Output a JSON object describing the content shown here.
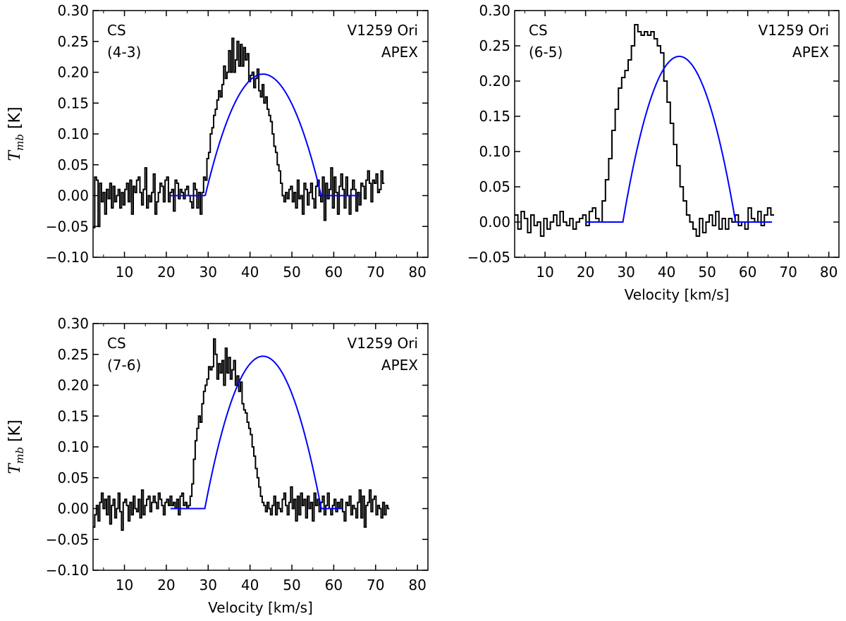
{
  "figure": {
    "description_units": {
      "x": "Velocity [km/s]",
      "y": "T_mb [K]"
    }
  },
  "chart_data": [
    {
      "type": "line",
      "panel": "top-left",
      "label_species": "CS",
      "label_transition": "(4-3)",
      "label_source": "V1259 Ori",
      "label_telescope": "APEX",
      "xlabel": "",
      "ylabel_main": "T",
      "ylabel_sub": "mb",
      "ylabel_unit": "[K]",
      "xlim": [
        2.5,
        82.5
      ],
      "ylim": [
        -0.1,
        0.3
      ],
      "xticks": [
        10,
        20,
        30,
        40,
        50,
        60,
        70,
        80
      ],
      "yticks": [
        -0.1,
        -0.05,
        0.0,
        0.05,
        0.1,
        0.15,
        0.2,
        0.25,
        0.3
      ],
      "ytick_labels": [
        "−0.10",
        "−0.05",
        "0.00",
        "0.05",
        "0.10",
        "0.15",
        "0.20",
        "0.25",
        "0.30"
      ],
      "series": [
        {
          "name": "observed spectrum",
          "style": "step",
          "color": "#000000",
          "x_start": 2.5,
          "x_step": 0.4,
          "values": [
            -0.052,
            0.03,
            0.025,
            -0.05,
            0.02,
            -0.01,
            0.005,
            -0.03,
            0.01,
            -0.005,
            0.02,
            -0.02,
            0.015,
            -0.01,
            0.0,
            0.01,
            -0.02,
            0.005,
            -0.015,
            0.01,
            0.02,
            -0.01,
            0.025,
            -0.03,
            0.015,
            0.005,
            0.025,
            0.03,
            0.005,
            -0.015,
            0.01,
            0.045,
            -0.02,
            0.0,
            -0.01,
            0.005,
            0.035,
            -0.03,
            -0.01,
            0.005,
            0.02,
            0.015,
            -0.01,
            0.025,
            0.03,
            -0.01,
            0.005,
            0.01,
            -0.025,
            0.025,
            0.02,
            -0.005,
            0.01,
            0.005,
            -0.005,
            0.01,
            0.015,
            0.0,
            -0.01,
            -0.02,
            0.02,
            0.01,
            -0.02,
            0.005,
            -0.03,
            0.005,
            0.03,
            0.025,
            0.06,
            0.07,
            0.1,
            0.11,
            0.13,
            0.14,
            0.155,
            0.17,
            0.16,
            0.18,
            0.21,
            0.19,
            0.2,
            0.235,
            0.2,
            0.255,
            0.2,
            0.22,
            0.25,
            0.21,
            0.245,
            0.21,
            0.24,
            0.22,
            0.23,
            0.185,
            0.195,
            0.2,
            0.175,
            0.19,
            0.205,
            0.17,
            0.16,
            0.18,
            0.15,
            0.16,
            0.14,
            0.13,
            0.12,
            0.1,
            0.08,
            0.07,
            0.05,
            0.04,
            0.02,
            0.0,
            -0.01,
            0.005,
            -0.005,
            0.01,
            0.015,
            -0.01,
            0.005,
            -0.02,
            0.025,
            -0.005,
            0.0,
            -0.03,
            0.02,
            0.01,
            -0.015,
            0.005,
            0.02,
            -0.005,
            -0.02,
            0.015,
            0.025,
            0.0,
            -0.01,
            0.03,
            -0.04,
            0.02,
            -0.005,
            0.01,
            0.045,
            -0.02,
            0.03,
            0.005,
            -0.03,
            0.015,
            0.035,
            0.01,
            -0.02,
            0.03,
            0.0,
            -0.03,
            0.01,
            0.025,
            0.01,
            -0.025,
            0.005,
            -0.015,
            0.02,
            0.015,
            -0.005,
            0.025,
            0.04,
            0.02,
            -0.01,
            0.025,
            0.02,
            0.035,
            0.005,
            0.01,
            0.04,
            0.02
          ]
        },
        {
          "name": "fit",
          "style": "line",
          "color": "#0000ff",
          "x_range": [
            21,
            66
          ],
          "plateau_lo": 29.3,
          "plateau_hi": 57.0,
          "center": 43.1,
          "peak": 0.197
        }
      ]
    },
    {
      "type": "line",
      "panel": "top-right",
      "label_species": "CS",
      "label_transition": "(6-5)",
      "label_source": "V1259 Ori",
      "label_telescope": "APEX",
      "xlabel": "Velocity [km/s]",
      "ylabel_main": "",
      "ylabel_sub": "",
      "ylabel_unit": "",
      "xlim": [
        2.5,
        82.5
      ],
      "ylim": [
        -0.05,
        0.3
      ],
      "xticks": [
        10,
        20,
        30,
        40,
        50,
        60,
        70,
        80
      ],
      "yticks": [
        -0.05,
        0.0,
        0.05,
        0.1,
        0.15,
        0.2,
        0.25,
        0.3
      ],
      "ytick_labels": [
        "−0.05",
        "0.00",
        "0.05",
        "0.10",
        "0.15",
        "0.20",
        "0.25",
        "0.30"
      ],
      "series": [
        {
          "name": "observed spectrum",
          "style": "step",
          "color": "#000000",
          "x_start": 2.5,
          "x_step": 0.8,
          "values": [
            0.01,
            -0.01,
            0.015,
            0.005,
            -0.015,
            0.01,
            -0.005,
            0.0,
            -0.02,
            0.005,
            -0.01,
            0.0,
            0.01,
            -0.005,
            0.015,
            0.0,
            -0.005,
            0.005,
            -0.01,
            0.0,
            0.005,
            0.01,
            -0.005,
            0.015,
            0.02,
            0.005,
            0.0,
            0.03,
            0.06,
            0.09,
            0.13,
            0.16,
            0.19,
            0.205,
            0.215,
            0.23,
            0.25,
            0.28,
            0.27,
            0.265,
            0.27,
            0.265,
            0.27,
            0.26,
            0.25,
            0.24,
            0.2,
            0.17,
            0.14,
            0.11,
            0.08,
            0.05,
            0.03,
            0.01,
            0.0,
            -0.01,
            -0.02,
            0.005,
            -0.015,
            0.0,
            0.01,
            -0.005,
            0.015,
            -0.01,
            0.005,
            -0.01,
            0.005,
            0.0,
            0.01,
            -0.005,
            0.0,
            -0.01,
            0.02,
            0.005,
            0.0,
            0.015,
            -0.005,
            0.01,
            0.02,
            0.01
          ]
        },
        {
          "name": "fit",
          "style": "line",
          "color": "#0000ff",
          "x_range": [
            20,
            66
          ],
          "plateau_lo": 29.2,
          "plateau_hi": 57.0,
          "center": 43.1,
          "peak": 0.235
        }
      ]
    },
    {
      "type": "line",
      "panel": "bottom-left",
      "label_species": "CS",
      "label_transition": "(7-6)",
      "label_source": "V1259 Ori",
      "label_telescope": "APEX",
      "xlabel": "Velocity [km/s]",
      "ylabel_main": "T",
      "ylabel_sub": "mb",
      "ylabel_unit": "[K]",
      "xlim": [
        2.5,
        82.5
      ],
      "ylim": [
        -0.1,
        0.3
      ],
      "xticks": [
        10,
        20,
        30,
        40,
        50,
        60,
        70,
        80
      ],
      "yticks": [
        -0.1,
        -0.05,
        0.0,
        0.05,
        0.1,
        0.15,
        0.2,
        0.25,
        0.3
      ],
      "ytick_labels": [
        "−0.10",
        "−0.05",
        "0.00",
        "0.05",
        "0.10",
        "0.15",
        "0.20",
        "0.25",
        "0.30"
      ],
      "series": [
        {
          "name": "observed spectrum",
          "style": "step",
          "color": "#000000",
          "x_start": 2.5,
          "x_step": 0.4,
          "values": [
            -0.03,
            -0.01,
            0.005,
            -0.02,
            0.01,
            0.025,
            0.0,
            0.015,
            -0.01,
            0.02,
            -0.025,
            0.005,
            0.015,
            -0.015,
            0.0,
            0.025,
            -0.005,
            -0.035,
            0.01,
            0.015,
            0.005,
            -0.02,
            0.01,
            -0.01,
            0.02,
            0.0,
            -0.005,
            0.015,
            -0.015,
            0.03,
            -0.01,
            0.005,
            0.015,
            0.02,
            -0.005,
            0.01,
            0.02,
            0.01,
            0.0,
            0.025,
            0.015,
            0.005,
            -0.01,
            0.01,
            0.015,
            0.005,
            0.02,
            0.005,
            0.01,
            0.0,
            0.015,
            -0.01,
            0.02,
            0.025,
            0.005,
            0.01,
            0.0,
            0.005,
            0.02,
            0.04,
            0.08,
            0.11,
            0.13,
            0.15,
            0.14,
            0.17,
            0.19,
            0.2,
            0.21,
            0.23,
            0.225,
            0.23,
            0.275,
            0.25,
            0.21,
            0.235,
            0.22,
            0.24,
            0.2,
            0.26,
            0.22,
            0.245,
            0.21,
            0.225,
            0.24,
            0.2,
            0.215,
            0.19,
            0.205,
            0.17,
            0.16,
            0.155,
            0.14,
            0.13,
            0.12,
            0.1,
            0.085,
            0.065,
            0.05,
            0.035,
            0.02,
            0.01,
            0.005,
            -0.005,
            0.01,
            0.0,
            -0.01,
            0.005,
            0.02,
            -0.01,
            0.01,
            0.0,
            -0.005,
            0.015,
            0.025,
            0.005,
            -0.01,
            0.01,
            0.035,
            0.0,
            0.015,
            -0.02,
            0.02,
            -0.01,
            0.025,
            0.005,
            0.015,
            -0.015,
            0.02,
            0.0,
            0.01,
            -0.02,
            0.025,
            0.005,
            0.015,
            -0.005,
            0.01,
            0.02,
            -0.01,
            0.005,
            0.025,
            0.0,
            -0.01,
            0.005,
            0.015,
            -0.005,
            0.01,
            0.0,
            0.015,
            -0.005,
            -0.02,
            0.01,
            0.005,
            0.02,
            -0.01,
            0.005,
            0.0,
            -0.015,
            0.01,
            0.03,
            -0.015,
            0.02,
            -0.03,
            0.005,
            0.01,
            0.03,
            -0.005,
            0.015,
            0.02,
            -0.01,
            0.005,
            0.0,
            -0.015,
            0.01,
            -0.01,
            0.005,
            0.0
          ]
        },
        {
          "name": "fit",
          "style": "line",
          "color": "#0000ff",
          "x_range": [
            21,
            62
          ],
          "plateau_lo": 29.2,
          "plateau_hi": 57.0,
          "center": 43.1,
          "peak": 0.247
        }
      ]
    }
  ]
}
